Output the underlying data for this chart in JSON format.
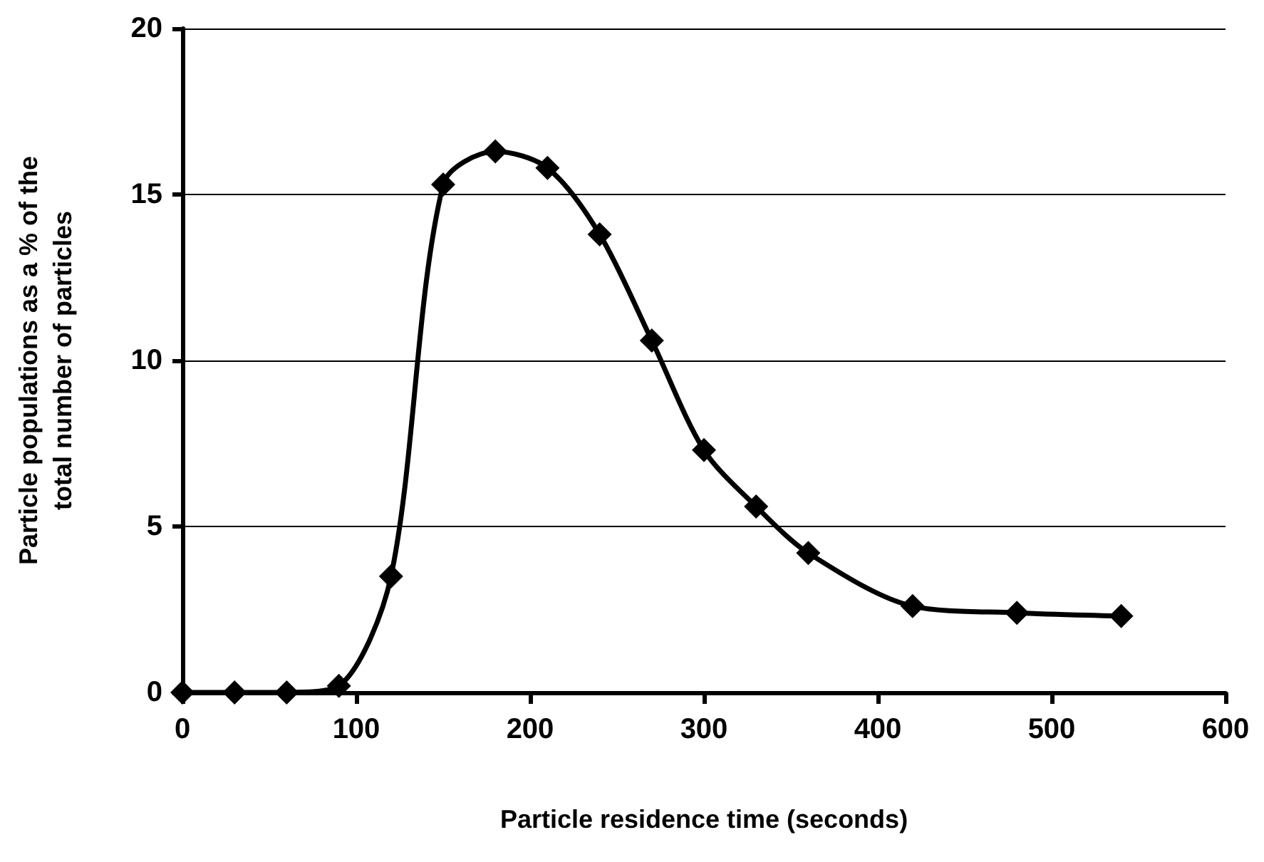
{
  "chart_data": {
    "type": "line",
    "xlabel": "Particle residence time (seconds)",
    "ylabel": "Particle populations as a % of the\ntotal number of particles",
    "x": [
      0,
      30,
      60,
      90,
      120,
      150,
      180,
      210,
      240,
      270,
      300,
      330,
      360,
      420,
      480,
      540
    ],
    "series": [
      {
        "color": "#000000",
        "values": [
          0,
          0,
          0,
          0.2,
          3.5,
          15.3,
          16.3,
          15.8,
          13.8,
          10.6,
          7.3,
          5.6,
          4.2,
          2.6,
          2.4,
          2.3
        ]
      }
    ],
    "xlim": [
      0,
      600
    ],
    "xticks": [
      0,
      100,
      200,
      300,
      400,
      500,
      600
    ],
    "ylim": [
      0,
      20
    ],
    "yticks": [
      0,
      5,
      10,
      15,
      20
    ],
    "grid": "y",
    "marker": "diamond",
    "line_style": "solid"
  }
}
